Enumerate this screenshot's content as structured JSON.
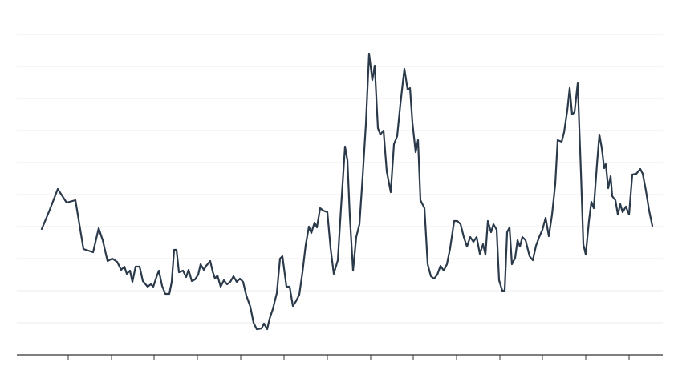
{
  "chart_data": {
    "type": "line",
    "color": "#2b3a4a",
    "grid": true,
    "xlim": [
      21,
      826
    ],
    "xticks": [
      85,
      139,
      192,
      246,
      300,
      354,
      408,
      462,
      515,
      569,
      623,
      676,
      730,
      784
    ],
    "ylim": [
      0,
      440
    ],
    "yticks": [
      40,
      80,
      120,
      160,
      200,
      240,
      280,
      320,
      360,
      400
    ],
    "x": [
      52,
      62,
      72,
      83,
      94,
      104,
      116,
      123,
      128,
      134,
      140,
      146,
      151,
      155,
      158,
      162,
      165,
      169,
      174,
      178,
      184,
      188,
      191,
      195,
      198,
      202,
      206,
      211,
      214,
      217,
      220,
      223,
      228,
      232,
      235,
      239,
      243,
      247,
      250,
      254,
      257,
      262,
      265,
      268,
      271,
      275,
      279,
      283,
      287,
      291,
      295,
      299,
      303,
      307,
      312,
      316,
      320,
      326,
      329,
      333,
      336,
      340,
      345,
      349,
      352,
      357,
      361,
      365,
      369,
      373,
      377,
      381,
      385,
      388,
      392,
      395,
      399,
      403,
      408,
      412,
      416,
      421,
      425,
      430,
      433,
      436,
      440,
      444,
      448,
      452,
      456,
      460,
      464,
      467,
      471,
      474,
      478,
      482,
      487,
      491,
      495,
      499,
      504,
      508,
      511,
      514,
      518,
      521,
      524,
      529,
      533,
      537,
      541,
      545,
      549,
      553,
      557,
      561,
      566,
      570,
      574,
      578,
      582,
      586,
      590,
      594,
      598,
      602,
      605,
      608,
      612,
      615,
      619,
      622,
      626,
      629,
      632,
      635,
      638,
      642,
      645,
      648,
      651,
      655,
      660,
      664,
      668,
      672,
      676,
      680,
      684,
      688,
      692,
      695,
      700,
      703,
      707,
      710,
      713,
      716,
      720,
      724,
      727,
      730,
      734,
      737,
      740,
      744,
      747,
      750,
      753,
      755,
      758,
      761,
      763,
      767,
      770,
      773,
      776,
      780,
      784,
      788,
      793,
      798,
      801,
      805,
      809,
      813
    ],
    "values": [
      157,
      181,
      207,
      190,
      193,
      132,
      128,
      158,
      143,
      117,
      120,
      116,
      106,
      110,
      101,
      105,
      91,
      110,
      110,
      92,
      85,
      88,
      85,
      97,
      105,
      86,
      76,
      76,
      91,
      131,
      131,
      103,
      105,
      97,
      106,
      92,
      94,
      100,
      113,
      106,
      111,
      117,
      104,
      95,
      99,
      85,
      93,
      88,
      91,
      98,
      91,
      95,
      91,
      74,
      60,
      40,
      32,
      33,
      39,
      32,
      45,
      57,
      77,
      120,
      123,
      85,
      85,
      61,
      67,
      75,
      103,
      137,
      160,
      152,
      165,
      159,
      183,
      180,
      178,
      133,
      101,
      118,
      183,
      260,
      243,
      173,
      105,
      147,
      163,
      223,
      288,
      376,
      343,
      361,
      283,
      275,
      280,
      229,
      203,
      263,
      273,
      313,
      357,
      331,
      333,
      290,
      253,
      268,
      193,
      183,
      113,
      98,
      95,
      100,
      111,
      105,
      113,
      133,
      167,
      167,
      163,
      147,
      135,
      147,
      141,
      147,
      126,
      138,
      125,
      167,
      153,
      163,
      156,
      93,
      80,
      80,
      153,
      159,
      113,
      121,
      143,
      135,
      147,
      143,
      123,
      118,
      136,
      147,
      156,
      171,
      148,
      175,
      213,
      268,
      266,
      278,
      305,
      333,
      300,
      303,
      339,
      228,
      138,
      125,
      167,
      191,
      183,
      238,
      275,
      258,
      233,
      238,
      208,
      223,
      198,
      193,
      175,
      188,
      178,
      185,
      175,
      225,
      226,
      232,
      226,
      205,
      180,
      161
    ]
  }
}
